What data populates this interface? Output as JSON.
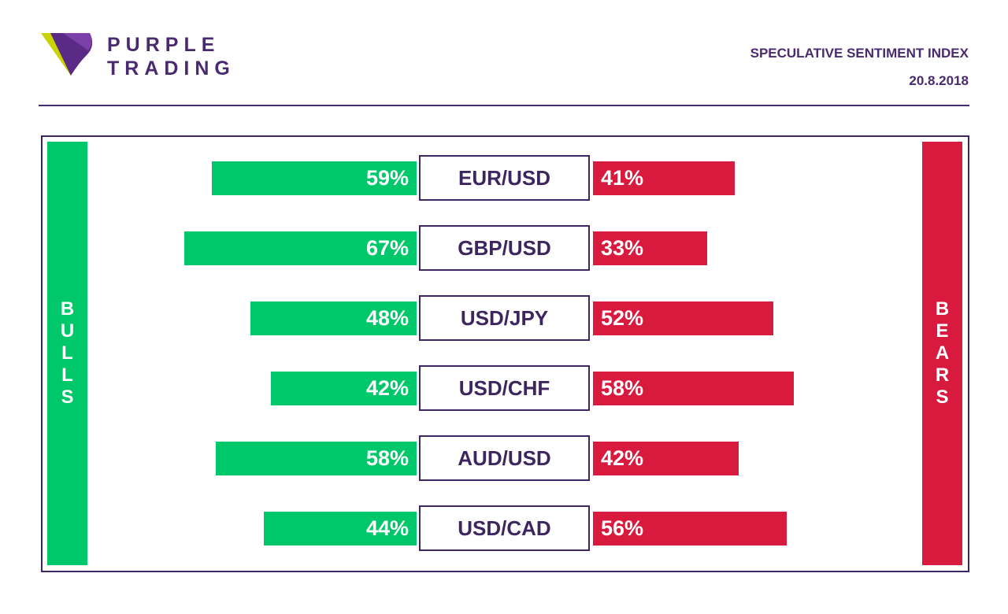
{
  "header": {
    "brand_line1": "PURPLE",
    "brand_line2": "TRADING",
    "title": "SPECULATIVE SENTIMENT INDEX",
    "date": "20.8.2018"
  },
  "colors": {
    "purple": "#4a2a6e",
    "bull": "#00c86a",
    "bear": "#d81a3f"
  },
  "left_label": "BULLS",
  "right_label": "BEARS",
  "chart_data": {
    "type": "bar",
    "orientation": "horizontal-diverging",
    "categories": [
      "EUR/USD",
      "GBP/USD",
      "USD/JPY",
      "USD/CHF",
      "AUD/USD",
      "USD/CAD"
    ],
    "series": [
      {
        "name": "BULLS",
        "values": [
          59,
          67,
          48,
          42,
          58,
          44
        ],
        "labels": [
          "59%",
          "67%",
          "48%",
          "42%",
          "58%",
          "44%"
        ]
      },
      {
        "name": "BEARS",
        "values": [
          41,
          33,
          52,
          58,
          42,
          56
        ],
        "labels": [
          "41%",
          "33%",
          "52%",
          "58%",
          "42%",
          "56%"
        ]
      }
    ],
    "unit": "%"
  }
}
